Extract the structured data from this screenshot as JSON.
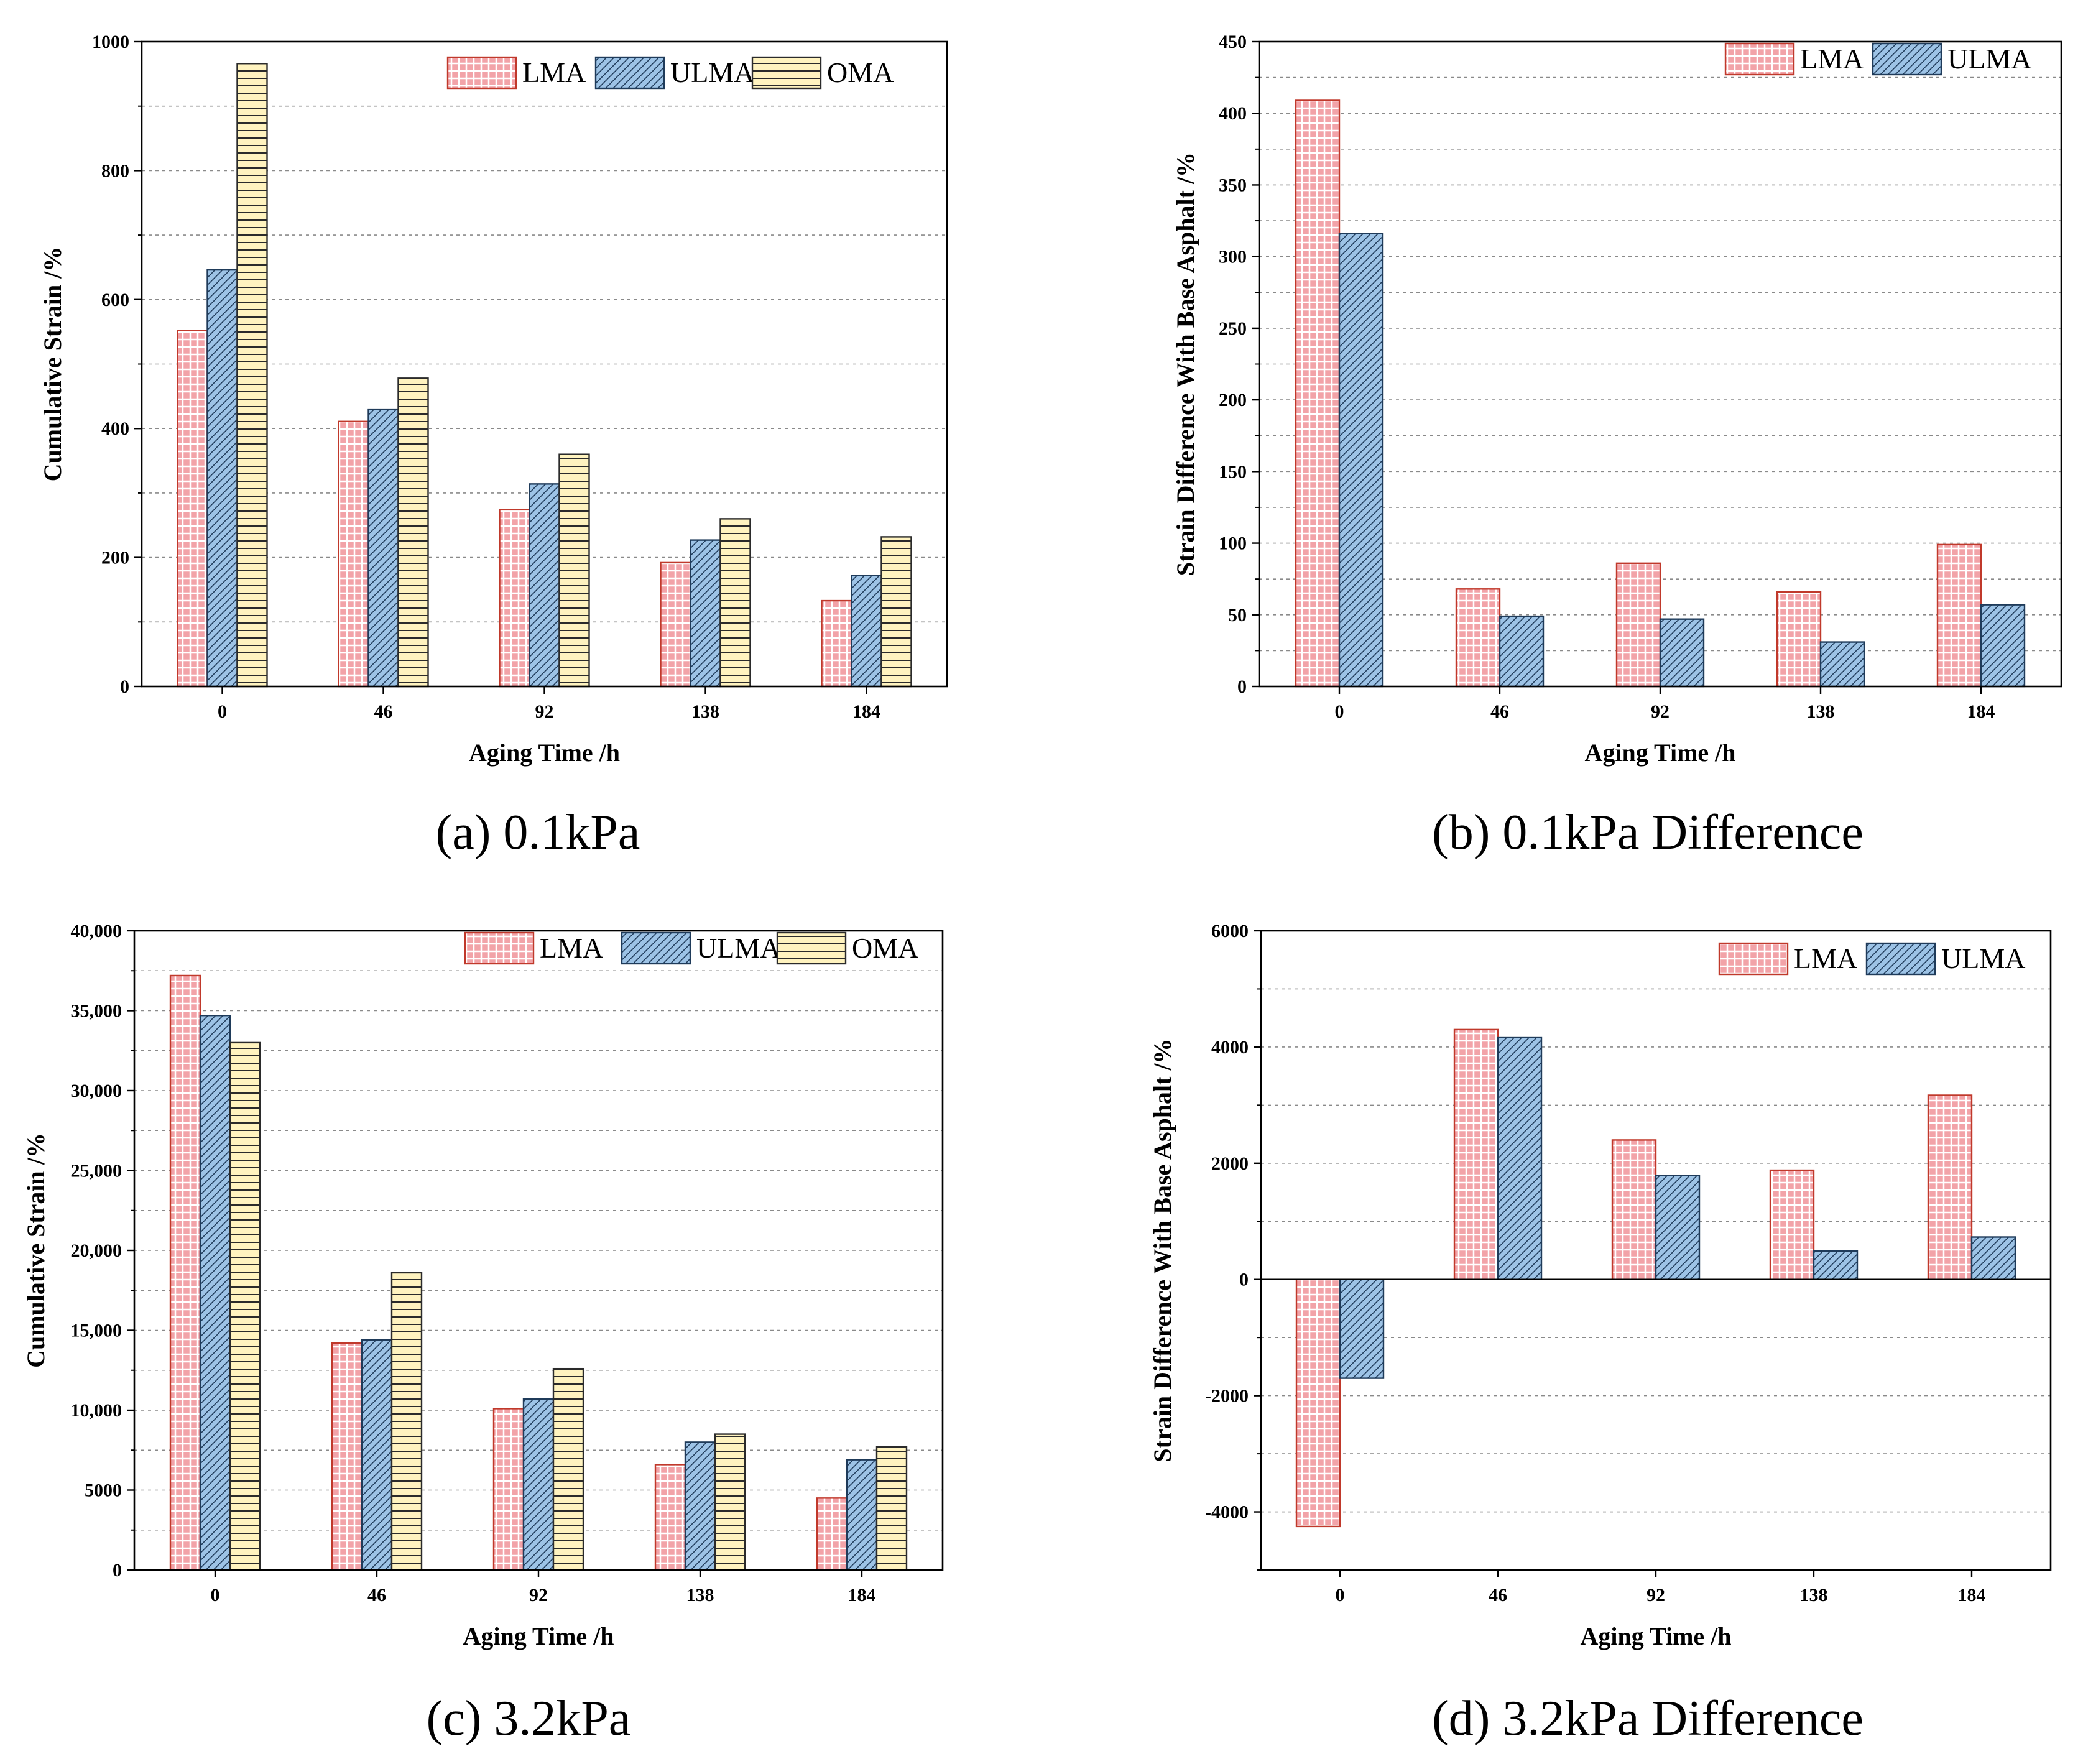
{
  "figure": {
    "background": "#ffffff"
  },
  "styles": {
    "LMA": {
      "color": "#f2a3a8",
      "stroke": "#c0392b",
      "pattern": "grid",
      "pattern_color": "#ffffff",
      "icon": "grid-hatch-swatch"
    },
    "ULMA": {
      "color": "#9dc3e6",
      "stroke": "#1f3b5a",
      "pattern": "diagonal",
      "pattern_color": "#1f3b5a",
      "icon": "diagonal-hatch-swatch"
    },
    "OMA": {
      "color": "#fff3bf",
      "stroke": "#2b2b2b",
      "pattern": "horizontal",
      "pattern_color": "#2b2b2b",
      "icon": "horizontal-hatch-swatch"
    }
  },
  "chart_data": [
    {
      "id": "a",
      "type": "bar",
      "caption": "(a)  0.1kPa",
      "categories": [
        "0",
        "46",
        "92",
        "138",
        "184"
      ],
      "series": [
        {
          "name": "LMA",
          "values": [
            552,
            411,
            274,
            192,
            133
          ]
        },
        {
          "name": "ULMA",
          "values": [
            646,
            430,
            314,
            227,
            172
          ]
        },
        {
          "name": "OMA",
          "values": [
            966,
            478,
            360,
            260,
            232
          ]
        }
      ],
      "xlabel": "Aging Time /h",
      "ylabel": "Cumulative Strain /%",
      "ylim": [
        0,
        1000
      ],
      "yticks": [
        0,
        200,
        400,
        600,
        800,
        1000
      ],
      "ytick_labels": [
        "0",
        "200",
        "400",
        "600",
        "800",
        "1000"
      ],
      "minor_step": 100,
      "grid": true,
      "legend": {
        "position": "top-right",
        "labels": [
          "LMA",
          "ULMA",
          "OMA"
        ]
      }
    },
    {
      "id": "b",
      "type": "bar",
      "caption": "(b)  0.1kPa Difference",
      "categories": [
        "0",
        "46",
        "92",
        "138",
        "184"
      ],
      "series": [
        {
          "name": "LMA",
          "values": [
            409,
            68,
            86,
            66,
            99
          ]
        },
        {
          "name": "ULMA",
          "values": [
            316,
            49,
            47,
            31,
            57
          ]
        }
      ],
      "xlabel": "Aging Time /h",
      "ylabel": "Strain Difference With Base Asphalt /%",
      "ylim": [
        0,
        450
      ],
      "yticks": [
        0,
        50,
        100,
        150,
        200,
        250,
        300,
        350,
        400,
        450
      ],
      "ytick_labels": [
        "0",
        "50",
        "100",
        "150",
        "200",
        "250",
        "300",
        "350",
        "400",
        "450"
      ],
      "minor_step": 25,
      "grid": true,
      "legend": {
        "position": "top-right",
        "labels": [
          "LMA",
          "ULMA"
        ]
      }
    },
    {
      "id": "c",
      "type": "bar",
      "caption": "(c)  3.2kPa",
      "categories": [
        "0",
        "46",
        "92",
        "138",
        "184"
      ],
      "series": [
        {
          "name": "LMA",
          "values": [
            37200,
            14200,
            10100,
            6600,
            4500
          ]
        },
        {
          "name": "ULMA",
          "values": [
            34700,
            14400,
            10700,
            8000,
            6900
          ]
        },
        {
          "name": "OMA",
          "values": [
            33000,
            18600,
            12600,
            8500,
            7700
          ]
        }
      ],
      "xlabel": "Aging Time /h",
      "ylabel": "Cumulative Strain /%",
      "ylim": [
        0,
        40000
      ],
      "yticks": [
        0,
        5000,
        10000,
        15000,
        20000,
        25000,
        30000,
        35000,
        40000
      ],
      "ytick_labels": [
        "0",
        "5000",
        "10,000",
        "15,000",
        "20,000",
        "25,000",
        "30,000",
        "35,000",
        "40,000"
      ],
      "minor_step": 2500,
      "grid": true,
      "legend": {
        "position": "top-right",
        "labels": [
          "LMA",
          "ULMA",
          "OMA"
        ]
      }
    },
    {
      "id": "d",
      "type": "bar",
      "caption": "(d)  3.2kPa Difference",
      "categories": [
        "0",
        "46",
        "92",
        "138",
        "184"
      ],
      "series": [
        {
          "name": "LMA",
          "values": [
            -4250,
            4300,
            2400,
            1880,
            3170
          ]
        },
        {
          "name": "ULMA",
          "values": [
            -1700,
            4170,
            1790,
            490,
            730
          ]
        }
      ],
      "xlabel": "Aging Time /h",
      "ylabel": "Strain Difference With Base Asphalt /%",
      "ylim": [
        -5000,
        6000
      ],
      "yticks": [
        -4000,
        -2000,
        0,
        2000,
        4000,
        6000
      ],
      "ytick_labels": [
        "-4000",
        "-2000",
        "0",
        "2000",
        "4000",
        "6000"
      ],
      "minor_step": 1000,
      "grid": true,
      "legend": {
        "position": "top-right",
        "labels": [
          "LMA",
          "ULMA"
        ]
      }
    }
  ]
}
